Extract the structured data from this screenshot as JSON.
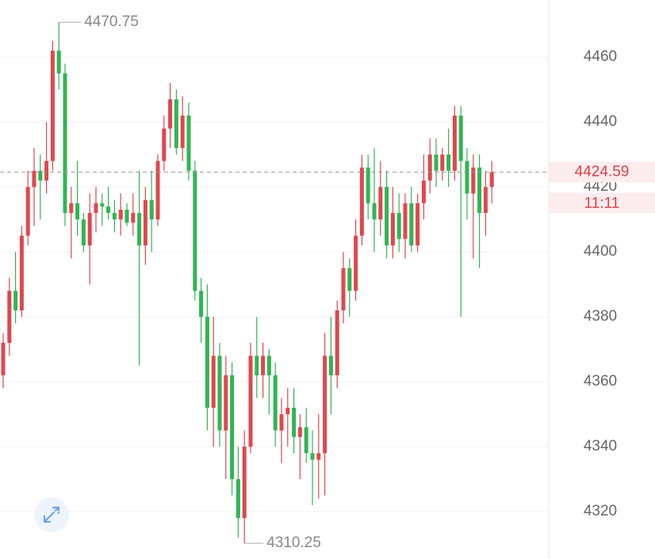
{
  "chart_data": {
    "type": "candlestick",
    "open": [
      4362,
      4372,
      4388,
      4382,
      4405,
      4420,
      4425,
      4422,
      4428,
      4462,
      4455,
      4412,
      4415,
      4410,
      4402,
      4412,
      4415,
      4414,
      4412,
      4410,
      4413,
      4409,
      4412,
      4402,
      4416,
      4410,
      4428,
      4438,
      4447,
      4432,
      4442,
      4425,
      4388,
      4380,
      4352,
      4368,
      4345,
      4362,
      4330,
      4318,
      4340,
      4368,
      4362,
      4368,
      4362,
      4345,
      4350,
      4352,
      4343,
      4346,
      4338,
      4336,
      4338,
      4368,
      4362,
      4382,
      4395,
      4388,
      4405,
      4426,
      4415,
      4410,
      4420,
      4402,
      4412,
      4404,
      4415,
      4402,
      4415,
      4422,
      4430,
      4425,
      4430,
      4425,
      4442,
      4428,
      4418,
      4426,
      4412,
      4420
    ],
    "high": [
      4375,
      4392,
      4400,
      4408,
      4425,
      4432,
      4430,
      4440,
      4465,
      4470.75,
      4458,
      4420,
      4428,
      4412,
      4418,
      4420,
      4418,
      4420,
      4416,
      4418,
      4415,
      4418,
      4425,
      4420,
      4425,
      4430,
      4442,
      4452,
      4450,
      4448,
      4446,
      4428,
      4392,
      4390,
      4380,
      4372,
      4368,
      4366,
      4340,
      4345,
      4372,
      4380,
      4372,
      4370,
      4366,
      4355,
      4358,
      4358,
      4350,
      4352,
      4345,
      4350,
      4375,
      4380,
      4385,
      4400,
      4398,
      4410,
      4430,
      4430,
      4432,
      4428,
      4425,
      4420,
      4418,
      4418,
      4420,
      4418,
      4430,
      4435,
      4435,
      4432,
      4438,
      4445,
      4445,
      4432,
      4430,
      4430,
      4425,
      4428
    ],
    "low": [
      4358,
      4368,
      4378,
      4380,
      4402,
      4408,
      4410,
      4418,
      4425,
      4450,
      4408,
      4398,
      4405,
      4400,
      4390,
      4406,
      4408,
      4410,
      4406,
      4405,
      4408,
      4405,
      4365,
      4396,
      4400,
      4408,
      4425,
      4432,
      4430,
      4428,
      4422,
      4385,
      4372,
      4345,
      4340,
      4340,
      4330,
      4325,
      4312,
      4310.25,
      4338,
      4355,
      4355,
      4350,
      4340,
      4335,
      4340,
      4338,
      4330,
      4335,
      4322,
      4324,
      4325,
      4350,
      4358,
      4378,
      4380,
      4385,
      4402,
      4410,
      4400,
      4405,
      4398,
      4398,
      4400,
      4398,
      4400,
      4400,
      4410,
      4418,
      4420,
      4422,
      4420,
      4422,
      4380,
      4410,
      4398,
      4395,
      4405,
      4415
    ],
    "close": [
      4372,
      4388,
      4382,
      4405,
      4420,
      4425,
      4422,
      4428,
      4462,
      4455,
      4412,
      4415,
      4410,
      4402,
      4412,
      4415,
      4414,
      4412,
      4410,
      4413,
      4409,
      4412,
      4402,
      4416,
      4410,
      4428,
      4438,
      4447,
      4432,
      4442,
      4425,
      4388,
      4380,
      4352,
      4368,
      4345,
      4362,
      4330,
      4318,
      4340,
      4368,
      4362,
      4368,
      4362,
      4345,
      4350,
      4352,
      4343,
      4346,
      4338,
      4336,
      4338,
      4368,
      4362,
      4382,
      4395,
      4388,
      4405,
      4426,
      4415,
      4410,
      4420,
      4402,
      4412,
      4404,
      4415,
      4402,
      4415,
      4422,
      4430,
      4425,
      4430,
      4425,
      4442,
      4428,
      4418,
      4426,
      4412,
      4420,
      4424.59
    ],
    "up_color": "#e0474f",
    "down_color": "#2fb653",
    "ylim": [
      4305.4,
      4477.6
    ],
    "yticks": [
      4320,
      4340,
      4360,
      4380,
      4400,
      4420,
      4440,
      4460
    ],
    "grid": true,
    "countdown": "11:11"
  }
}
